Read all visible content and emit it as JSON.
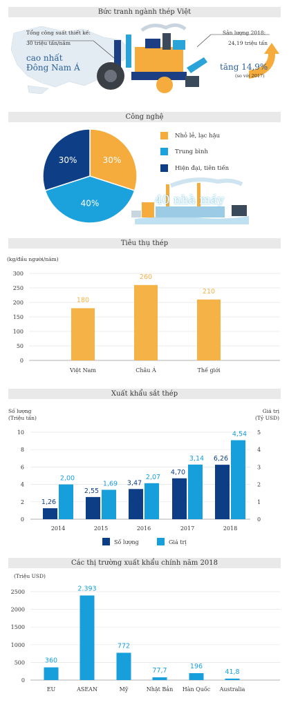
{
  "sections": {
    "overview": "Bức tranh ngành thép Việt",
    "technology": "Công nghệ",
    "consumption": "Tiêu thụ thép",
    "exports": "Xuất khẩu sắt thép",
    "markets": "Các thị trường xuất khẩu chính năm 2018"
  },
  "overview": {
    "capacity_label": "Tổng công suất thiết kế:",
    "capacity_value": "30 triệu tấn/năm",
    "highest_1": "cao nhất",
    "highest_2": "Đông Nam Á",
    "output_label": "Sản lượng 2018:",
    "output_value": "24,19 triệu tấn",
    "growth": "tăng 14,9%",
    "growth_note": "(so với 2017)",
    "colors": {
      "orange": "#f5ac3d",
      "navy": "#1c3f84",
      "blue": "#2aa4d8"
    }
  },
  "technology": {
    "factories": "40 nhà máy",
    "legend": [
      "Nhỏ lẻ, lạc hậu",
      "Trung bình",
      "Hiện đại, tiên tiến"
    ],
    "chart_data": {
      "type": "pie",
      "slices": [
        {
          "label": "Nhỏ lẻ, lạc hậu",
          "value": 30,
          "text": "30%",
          "color": "#f5ac3d"
        },
        {
          "label": "Trung bình",
          "value": 40,
          "text": "40%",
          "color": "#1ba1dc"
        },
        {
          "label": "Hiện đại, tiên tiến",
          "value": 30,
          "text": "30%",
          "color": "#0e3f86"
        }
      ]
    }
  },
  "consumption": {
    "chart_data": {
      "type": "bar",
      "ylabel": "(kg/đầu người/năm)",
      "categories": [
        "Việt Nam",
        "Châu Á",
        "Thế giới"
      ],
      "values": [
        180,
        260,
        210
      ],
      "value_labels": [
        "180",
        "260",
        "210"
      ],
      "yticks": [
        0,
        50,
        100,
        150,
        200,
        250,
        300
      ],
      "ylim": [
        0,
        300
      ],
      "color": "#f5b246"
    }
  },
  "exports": {
    "chart_data": {
      "type": "bar",
      "categories": [
        "2014",
        "2015",
        "2016",
        "2017",
        "2018"
      ],
      "ylabel_left": "Số lượng\n(Triệu tấn)",
      "ylabel_left_1": "Số lượng",
      "ylabel_left_2": "(Triệu tấn)",
      "ylabel_right_1": "Giá trị",
      "ylabel_right_2": "(Tỷ USD)",
      "yticks_left": [
        0,
        2,
        4,
        6,
        8,
        10
      ],
      "yticks_right": [
        0,
        1,
        2,
        3,
        4,
        5
      ],
      "ylim_left": [
        0,
        10
      ],
      "ylim_right": [
        0,
        5
      ],
      "series": [
        {
          "name": "Số lượng",
          "axis": "left",
          "values": [
            1.26,
            2.55,
            3.47,
            4.7,
            6.26
          ],
          "labels": [
            "1,26",
            "2,55",
            "3,47",
            "4,70",
            "6,26"
          ],
          "color": "#0d3e85"
        },
        {
          "name": "Giá trị",
          "axis": "right",
          "values": [
            2.0,
            1.69,
            2.07,
            3.14,
            4.54
          ],
          "labels": [
            "2,00",
            "1,69",
            "2,07",
            "3,14",
            "4,54"
          ],
          "color": "#179fdb"
        }
      ]
    }
  },
  "markets": {
    "chart_data": {
      "type": "bar",
      "ylabel": "(Triệu USD)",
      "categories": [
        "EU",
        "ASEAN",
        "Mỹ",
        "Nhật Bản",
        "Hàn Quốc",
        "Australia"
      ],
      "values": [
        360,
        2393,
        772,
        77.7,
        196,
        41.8
      ],
      "value_labels": [
        "360",
        "2.393",
        "772",
        "77,7",
        "196",
        "41,8"
      ],
      "yticks": [
        0,
        500,
        1000,
        1500,
        2000,
        2500
      ],
      "ylim": [
        0,
        2500
      ],
      "color": "#179fdb"
    }
  }
}
